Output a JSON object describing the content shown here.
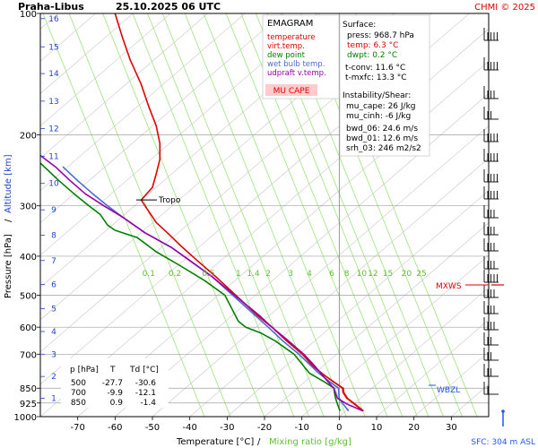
{
  "header": {
    "station": "Praha-Libus",
    "datetime": "25.10.2025 06 UTC",
    "credit": "CHMI © 2025"
  },
  "legend": {
    "title": "EMAGRAM",
    "items": [
      {
        "label": "temperature",
        "color": "#e00000"
      },
      {
        "label": "virt.temp.",
        "color": "#e00000"
      },
      {
        "label": "dew point",
        "color": "#008000"
      },
      {
        "label": "wet bulb temp.",
        "color": "#4a6bd0"
      },
      {
        "label": "udpraft v.temp.",
        "color": "#9900aa"
      }
    ],
    "mu_cape_label": "MU CAPE"
  },
  "surface": {
    "title": "Surface:",
    "lines": [
      {
        "text": "press: 968.7 hPa",
        "color": "#000000"
      },
      {
        "text": "temp: 6.3 °C",
        "color": "#e00000"
      },
      {
        "text": "dwpt: 0.2 °C",
        "color": "#008000"
      }
    ],
    "levels": [
      "t-conv: 11.6 °C",
      "t-mxfc: 13.3 °C"
    ]
  },
  "instability": {
    "title": "Instability/Shear:",
    "lines": [
      "mu_cape: 26 J/kg",
      "mu_cinh: -6 J/kg",
      "bwd_06: 24.6 m/s",
      "bwd_01: 12.6 m/s",
      "srh_03: 246 m2/s2"
    ]
  },
  "level_table": {
    "headers": [
      "p [hPa]",
      "T",
      "Td [°C]"
    ],
    "rows": [
      [
        "500",
        "-27.7",
        "-30.6"
      ],
      [
        "700",
        "-9.9",
        "-12.1"
      ],
      [
        "850",
        "0.9",
        "-1.4"
      ]
    ]
  },
  "annotations": {
    "tropo": "Tropo",
    "mxws": "MXWS",
    "wbzl": "WBZL",
    "sfc": "SFC: 304 m ASL"
  },
  "axes": {
    "xlabel": "Temperature [°C]",
    "xlabel_sep": "/",
    "xlabel2": "Mixing ratio [g/kg]",
    "ylabel": "Pressure [hPa]",
    "ylabel_sep": "/",
    "ylabel2": "Altitude [km]"
  },
  "chart_data": {
    "type": "line",
    "xlim": [
      -80,
      40
    ],
    "ylim": [
      1000,
      100
    ],
    "y_scale": "log",
    "x_ticks": [
      -70,
      -60,
      -50,
      -40,
      -30,
      -20,
      -10,
      0,
      10,
      20,
      30
    ],
    "pressure_ticks": [
      100,
      200,
      300,
      400,
      500,
      600,
      700,
      850,
      925,
      1000
    ],
    "altitude_ticks_km": [
      1,
      2,
      3,
      4,
      5,
      6,
      7,
      8,
      9,
      10,
      11,
      12,
      13,
      14,
      15,
      16
    ],
    "altitude_tick_pressures": [
      900,
      795,
      700,
      615,
      540,
      470,
      410,
      355,
      307,
      264,
      226,
      193,
      165,
      141,
      121,
      103
    ],
    "mixing_ratio_labels": [
      "0.1",
      "0.2",
      "0.5",
      "1",
      "1.4",
      "2",
      "3",
      "4",
      "6",
      "8",
      "10",
      "12",
      "15",
      "20",
      "25"
    ],
    "mixing_ratio_label_pressure": 452,
    "mixing_ratio_label_temps": [
      -51,
      -44,
      -35,
      -27,
      -23,
      -19,
      -13,
      -8,
      -2,
      2,
      6,
      9,
      13,
      18,
      22
    ],
    "mixing_ratio_line_slope": 36,
    "tropopause_pressure": 290,
    "grid": true,
    "series": [
      {
        "name": "temperature",
        "color": "#e00000",
        "points": [
          [
            6.3,
            968
          ],
          [
            4,
            930
          ],
          [
            2,
            900
          ],
          [
            1,
            870
          ],
          [
            0.9,
            850
          ],
          [
            -1.5,
            820
          ],
          [
            -4,
            790
          ],
          [
            -7,
            750
          ],
          [
            -9.9,
            700
          ],
          [
            -14,
            650
          ],
          [
            -18,
            600
          ],
          [
            -22,
            560
          ],
          [
            -27.7,
            500
          ],
          [
            -33,
            450
          ],
          [
            -38,
            410
          ],
          [
            -42,
            380
          ],
          [
            -46,
            350
          ],
          [
            -49,
            330
          ],
          [
            -52,
            300
          ],
          [
            -53,
            290
          ],
          [
            -50,
            270
          ],
          [
            -49,
            250
          ],
          [
            -48,
            230
          ],
          [
            -48,
            210
          ],
          [
            -49,
            190
          ],
          [
            -51,
            170
          ],
          [
            -53,
            150
          ],
          [
            -56,
            130
          ],
          [
            -58,
            115
          ],
          [
            -60,
            100
          ]
        ]
      },
      {
        "name": "virt.temp.",
        "color": "#e00000",
        "points": [
          [
            6.6,
            968
          ],
          [
            4.3,
            930
          ],
          [
            2.3,
            900
          ],
          [
            1.3,
            870
          ],
          [
            1.2,
            850
          ],
          [
            -1.3,
            820
          ],
          [
            -3.8,
            790
          ],
          [
            -6.8,
            750
          ],
          [
            -9.7,
            700
          ],
          [
            -13.9,
            650
          ],
          [
            -17.9,
            600
          ],
          [
            -21.9,
            560
          ],
          [
            -27.6,
            500
          ],
          [
            -33,
            450
          ],
          [
            -38,
            410
          ],
          [
            -42,
            380
          ],
          [
            -46,
            350
          ],
          [
            -49,
            330
          ],
          [
            -52,
            300
          ],
          [
            -53,
            290
          ],
          [
            -50,
            270
          ],
          [
            -49,
            250
          ],
          [
            -48,
            230
          ],
          [
            -48,
            210
          ],
          [
            -49,
            190
          ],
          [
            -51,
            170
          ],
          [
            -53,
            150
          ],
          [
            -56,
            130
          ],
          [
            -58,
            115
          ],
          [
            -60,
            100
          ]
        ]
      },
      {
        "name": "dew point",
        "color": "#008000",
        "points": [
          [
            0.2,
            968
          ],
          [
            -0.5,
            930
          ],
          [
            -1,
            900
          ],
          [
            -1.3,
            870
          ],
          [
            -1.4,
            850
          ],
          [
            -4,
            820
          ],
          [
            -8,
            780
          ],
          [
            -12.1,
            700
          ],
          [
            -17,
            650
          ],
          [
            -21,
            620
          ],
          [
            -25,
            600
          ],
          [
            -27,
            580
          ],
          [
            -30.6,
            500
          ],
          [
            -36,
            460
          ],
          [
            -43,
            420
          ],
          [
            -49,
            390
          ],
          [
            -54,
            360
          ],
          [
            -60,
            345
          ],
          [
            -62,
            335
          ],
          [
            -64,
            315
          ],
          [
            -67,
            300
          ],
          [
            -71,
            280
          ],
          [
            -75,
            260
          ],
          [
            -80,
            235
          ]
        ]
      },
      {
        "name": "wet bulb temp.",
        "color": "#4a6bd0",
        "points": [
          [
            2.5,
            968
          ],
          [
            1,
            930
          ],
          [
            0,
            900
          ],
          [
            -0.2,
            850
          ],
          [
            -2.5,
            820
          ],
          [
            -5.5,
            780
          ],
          [
            -10.8,
            700
          ],
          [
            -15,
            650
          ],
          [
            -19,
            600
          ],
          [
            -28.5,
            500
          ],
          [
            -34,
            450
          ],
          [
            -40,
            410
          ],
          [
            -45,
            380
          ],
          [
            -52,
            350
          ],
          [
            -58,
            320
          ],
          [
            -62,
            300
          ],
          [
            -66,
            280
          ],
          [
            -70,
            260
          ],
          [
            -74,
            240
          ]
        ]
      },
      {
        "name": "udpraft v.temp.",
        "color": "#9900aa",
        "points": [
          [
            6.3,
            968
          ],
          [
            2,
            930
          ],
          [
            -0.5,
            900
          ],
          [
            -1.5,
            850
          ],
          [
            -4,
            800
          ],
          [
            -6.5,
            750
          ],
          [
            -9.5,
            700
          ],
          [
            -13.5,
            650
          ],
          [
            -18,
            600
          ],
          [
            -21.5,
            560
          ],
          [
            -28,
            500
          ],
          [
            -34,
            450
          ],
          [
            -40,
            410
          ],
          [
            -45,
            380
          ],
          [
            -52,
            350
          ],
          [
            -58,
            320
          ],
          [
            -63,
            300
          ],
          [
            -68,
            280
          ],
          [
            -72,
            260
          ],
          [
            -76,
            240
          ],
          [
            -80,
            225
          ]
        ]
      }
    ]
  }
}
